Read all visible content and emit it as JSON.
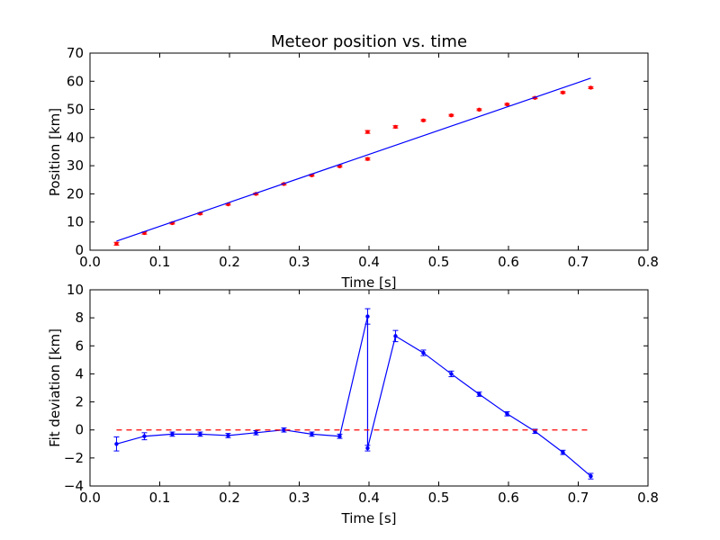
{
  "chart_data": [
    {
      "type": "scatter",
      "title": "Meteor position vs. time",
      "xlabel": "Time [s]",
      "ylabel": "Position [km]",
      "xlim": [
        0.0,
        0.8
      ],
      "ylim": [
        0,
        70
      ],
      "xticks": [
        "0.0",
        "0.1",
        "0.2",
        "0.3",
        "0.4",
        "0.5",
        "0.6",
        "0.7",
        "0.8"
      ],
      "yticks": [
        "0",
        "10",
        "20",
        "30",
        "40",
        "50",
        "60",
        "70"
      ],
      "grid": false,
      "series": [
        {
          "kind": "points-with-errorbars",
          "color": "#ff0000",
          "x": [
            0.038,
            0.078,
            0.118,
            0.158,
            0.198,
            0.238,
            0.278,
            0.318,
            0.358,
            0.398,
            0.398,
            0.438,
            0.478,
            0.518,
            0.558,
            0.598,
            0.638,
            0.678,
            0.718
          ],
          "y": [
            2.3,
            6.1,
            9.6,
            13.0,
            16.3,
            20.0,
            23.5,
            26.6,
            29.8,
            32.4,
            42.0,
            43.8,
            46.1,
            47.9,
            49.9,
            51.8,
            54.1,
            56.0,
            57.7
          ],
          "yerr": [
            0.5,
            0.4,
            0.3,
            0.3,
            0.3,
            0.3,
            0.3,
            0.3,
            0.3,
            0.4,
            0.5,
            0.4,
            0.3,
            0.3,
            0.3,
            0.3,
            0.3,
            0.3,
            0.3
          ]
        },
        {
          "kind": "fit-line",
          "color": "#0000ff",
          "x": [
            0.038,
            0.718
          ],
          "y": [
            3.2,
            61.1
          ]
        }
      ]
    },
    {
      "type": "line",
      "title": "",
      "xlabel": "Time [s]",
      "ylabel": "Fit deviation [km]",
      "xlim": [
        0.0,
        0.8
      ],
      "ylim": [
        -4,
        10
      ],
      "xticks": [
        "0.0",
        "0.1",
        "0.2",
        "0.3",
        "0.4",
        "0.5",
        "0.6",
        "0.7",
        "0.8"
      ],
      "yticks": [
        "−4",
        "−2",
        "0",
        "2",
        "4",
        "6",
        "8",
        "10"
      ],
      "grid": false,
      "series": [
        {
          "kind": "line-with-errorbars",
          "color": "#0000ff",
          "x": [
            0.038,
            0.078,
            0.118,
            0.158,
            0.198,
            0.238,
            0.278,
            0.318,
            0.358,
            0.398,
            0.398,
            0.438,
            0.478,
            0.518,
            0.558,
            0.598,
            0.638,
            0.678,
            0.718
          ],
          "y": [
            -1.0,
            -0.45,
            -0.3,
            -0.3,
            -0.4,
            -0.2,
            0.0,
            -0.3,
            -0.45,
            8.1,
            -1.3,
            6.7,
            5.5,
            4.0,
            2.55,
            1.15,
            -0.1,
            -1.6,
            -3.3
          ],
          "yerr": [
            0.5,
            0.25,
            0.15,
            0.15,
            0.15,
            0.15,
            0.15,
            0.15,
            0.15,
            0.55,
            0.2,
            0.4,
            0.2,
            0.2,
            0.15,
            0.15,
            0.15,
            0.15,
            0.2
          ]
        },
        {
          "kind": "reference-dashed",
          "color": "#ff0000",
          "x": [
            0.038,
            0.718
          ],
          "y": [
            0,
            0
          ]
        }
      ]
    }
  ]
}
